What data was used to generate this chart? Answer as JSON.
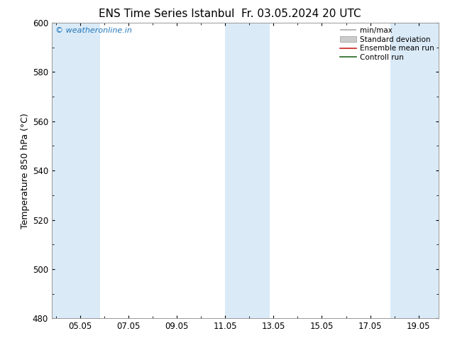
{
  "title": "ENS Time Series Istanbul",
  "title2": "Fr. 03.05.2024 20 UTC",
  "ylabel": "Temperature 850 hPa (°C)",
  "ylim": [
    480,
    600
  ],
  "yticks": [
    480,
    500,
    520,
    540,
    560,
    580,
    600
  ],
  "xtick_labels": [
    "05.05",
    "07.05",
    "09.05",
    "11.05",
    "13.05",
    "15.05",
    "17.05",
    "19.05"
  ],
  "xtick_positions_day": [
    5,
    7,
    9,
    11,
    13,
    15,
    17,
    19
  ],
  "xlim": [
    3.833,
    19.833
  ],
  "bg_color": "#ffffff",
  "plot_bg_color": "#ffffff",
  "band_color": "#daeaf7",
  "band_positions": [
    {
      "start": 3.833,
      "end": 5.833
    },
    {
      "start": 11.0,
      "end": 12.833
    },
    {
      "start": 17.833,
      "end": 19.833
    }
  ],
  "watermark": "© weatheronline.in",
  "watermark_color": "#2277bb",
  "legend_labels": [
    "min/max",
    "Standard deviation",
    "Ensemble mean run",
    "Controll run"
  ],
  "legend_line_colors": [
    "#aaaaaa",
    "#bbbbbb",
    "#dd2222",
    "#228822"
  ],
  "title_fontsize": 11,
  "tick_fontsize": 8.5,
  "ylabel_fontsize": 9
}
